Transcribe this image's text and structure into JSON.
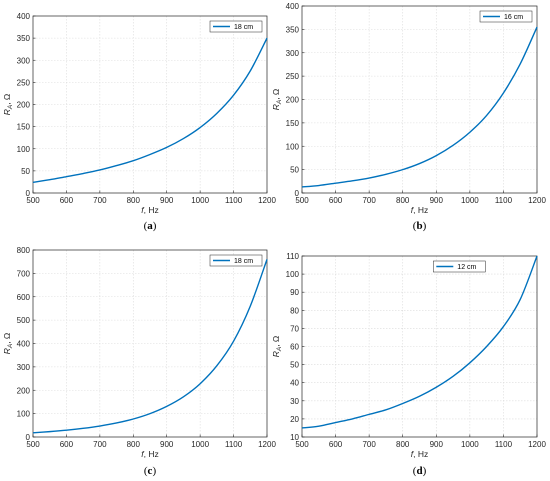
{
  "line_color": "#0072BD",
  "grid_color": "#dcdcdc",
  "chart_data": [
    {
      "type": "line",
      "panel_label": "a",
      "xlabel": "f, Hz",
      "ylabel": "R_A, Ω",
      "xlim": [
        500,
        1200
      ],
      "ylim": [
        0,
        400
      ],
      "xticks": [
        500,
        600,
        700,
        800,
        900,
        1000,
        1100,
        1200
      ],
      "yticks": [
        0,
        50,
        100,
        150,
        200,
        250,
        300,
        350,
        400
      ],
      "legend_position": "top-right",
      "grid": true,
      "series": [
        {
          "name": "18 cm",
          "x": [
            500,
            550,
            600,
            650,
            700,
            750,
            800,
            850,
            900,
            950,
            1000,
            1050,
            1100,
            1150,
            1200
          ],
          "y": [
            24,
            30,
            37,
            44,
            52,
            62,
            73,
            87,
            103,
            123,
            148,
            180,
            221,
            276,
            350
          ]
        }
      ]
    },
    {
      "type": "line",
      "panel_label": "b",
      "xlabel": "f, Hz",
      "ylabel": "R_A, Ω",
      "xlim": [
        500,
        1200
      ],
      "ylim": [
        0,
        400
      ],
      "xticks": [
        500,
        600,
        700,
        800,
        900,
        1000,
        1100,
        1200
      ],
      "yticks": [
        0,
        50,
        100,
        150,
        200,
        250,
        300,
        350,
        400
      ],
      "legend_position": "top-right",
      "grid": true,
      "series": [
        {
          "name": "16 cm",
          "x": [
            500,
            550,
            600,
            650,
            700,
            750,
            800,
            850,
            900,
            950,
            1000,
            1050,
            1100,
            1150,
            1200
          ],
          "y": [
            13,
            16,
            21,
            26,
            32,
            40,
            50,
            63,
            80,
            102,
            130,
            166,
            214,
            276,
            355
          ]
        }
      ]
    },
    {
      "type": "line",
      "panel_label": "c",
      "xlabel": "f, Hz",
      "ylabel": "R_A, Ω",
      "xlim": [
        500,
        1200
      ],
      "ylim": [
        0,
        800
      ],
      "xticks": [
        500,
        600,
        700,
        800,
        900,
        1000,
        1100,
        1200
      ],
      "yticks": [
        0,
        100,
        200,
        300,
        400,
        500,
        600,
        700,
        800
      ],
      "legend_position": "top-right",
      "grid": true,
      "series": [
        {
          "name": "18 cm",
          "x": [
            500,
            550,
            600,
            650,
            700,
            750,
            800,
            850,
            900,
            950,
            1000,
            1050,
            1100,
            1150,
            1200
          ],
          "y": [
            18,
            23,
            29,
            37,
            47,
            60,
            77,
            100,
            131,
            172,
            228,
            305,
            410,
            560,
            760
          ]
        }
      ]
    },
    {
      "type": "line",
      "panel_label": "d",
      "xlabel": "f, Hz",
      "ylabel": "R_A, Ω",
      "xlim": [
        500,
        1200
      ],
      "ylim": [
        10,
        110
      ],
      "xticks": [
        500,
        600,
        700,
        800,
        900,
        1000,
        1100,
        1200
      ],
      "yticks": [
        10,
        20,
        30,
        40,
        50,
        60,
        70,
        80,
        90,
        100,
        110
      ],
      "legend_position": "top-left",
      "grid": true,
      "series": [
        {
          "name": "12 cm",
          "x": [
            500,
            550,
            600,
            650,
            700,
            750,
            800,
            850,
            900,
            950,
            1000,
            1050,
            1100,
            1150,
            1200
          ],
          "y": [
            15,
            16,
            18,
            20,
            22.5,
            25,
            28.5,
            32.5,
            37.5,
            43.5,
            51,
            60,
            71,
            86,
            110
          ]
        }
      ]
    }
  ]
}
